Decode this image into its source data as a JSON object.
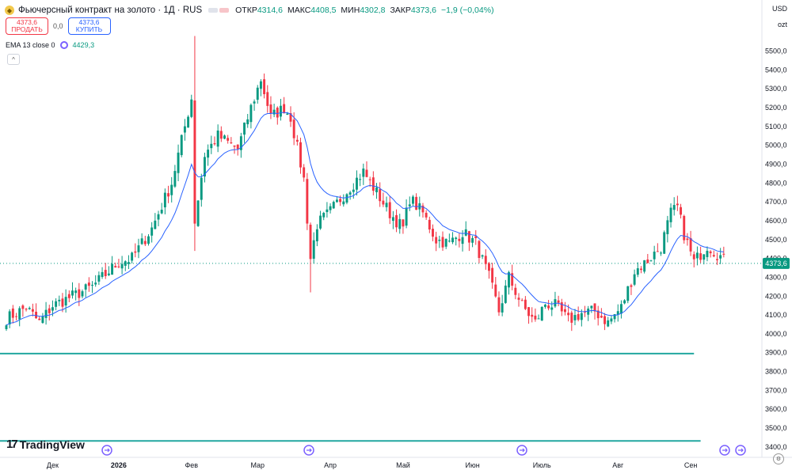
{
  "header": {
    "title": "Фьючерсный контракт на золото · 1Д · RUS",
    "open_label": "ОТКР",
    "open": "4314,6",
    "high_label": "МАКС",
    "high": "4408,5",
    "low_label": "МИН",
    "low": "4302,8",
    "close_label": "ЗАКР",
    "close": "4373,6",
    "change": "−1,9 (−0,04%)"
  },
  "trade": {
    "sell_price": "4373,6",
    "sell_label": "ПРОДАТЬ",
    "spread": "0,0",
    "buy_price": "4373,6",
    "buy_label": "КУПИТЬ"
  },
  "indicator": {
    "label": "EMA 13 close 0",
    "value": "4429,3"
  },
  "axis": {
    "currency": "USD",
    "unit": "ozt"
  },
  "brand": "TradingView",
  "colors": {
    "up": "#089981",
    "down": "#f23645",
    "ema": "#2962ff",
    "hline": "#22a7a0",
    "price_tag": "#089981"
  },
  "chart_data": {
    "type": "candlestick",
    "last_price_label": "4373,6",
    "last_price": 4373.6,
    "ylim": [
      3370,
      5620
    ],
    "y_ticks": [
      3400,
      3500,
      3600,
      3700,
      3800,
      3900,
      4000,
      4100,
      4200,
      4300,
      4400,
      4500,
      4600,
      4700,
      4800,
      4900,
      5000,
      5100,
      5200,
      5300,
      5400,
      5500
    ],
    "y_tick_labels": [
      "3400,0",
      "3500,0",
      "3600,0",
      "3700,0",
      "3800,0",
      "3900,0",
      "4000,0",
      "4100,0",
      "4200,0",
      "4300,0",
      "4400,0",
      "4500,0",
      "4600,0",
      "4700,0",
      "4800,0",
      "4900,0",
      "5000,0",
      "5100,0",
      "5200,0",
      "5300,0",
      "5400,0",
      "5500,0"
    ],
    "x_labels": [
      {
        "label": "Дек",
        "bar": 14
      },
      {
        "label": "2026",
        "bar": 34
      },
      {
        "label": "Фев",
        "bar": 56
      },
      {
        "label": "Мар",
        "bar": 76
      },
      {
        "label": "Апр",
        "bar": 98
      },
      {
        "label": "Май",
        "bar": 120
      },
      {
        "label": "Июн",
        "bar": 141
      },
      {
        "label": "Июль",
        "bar": 162
      },
      {
        "label": "Авг",
        "bar": 185
      },
      {
        "label": "Сен",
        "bar": 207
      }
    ],
    "horizontal_lines": [
      {
        "value": 3895,
        "bar_end": 208
      },
      {
        "value": 3432,
        "bar_end": 210
      }
    ],
    "ema_period": 13,
    "control_points": [
      [
        0,
        4080
      ],
      [
        6,
        4140
      ],
      [
        10,
        4060
      ],
      [
        14,
        4150
      ],
      [
        20,
        4200
      ],
      [
        26,
        4250
      ],
      [
        34,
        4380
      ],
      [
        38,
        4400
      ],
      [
        44,
        4560
      ],
      [
        50,
        4800
      ],
      [
        54,
        5100
      ],
      [
        56,
        5250
      ],
      [
        57,
        4600
      ],
      [
        60,
        4950
      ],
      [
        64,
        5050
      ],
      [
        70,
        4980
      ],
      [
        74,
        5200
      ],
      [
        77,
        5350
      ],
      [
        80,
        5150
      ],
      [
        84,
        5200
      ],
      [
        86,
        5150
      ],
      [
        90,
        4820
      ],
      [
        92,
        4400
      ],
      [
        94,
        4580
      ],
      [
        98,
        4650
      ],
      [
        104,
        4780
      ],
      [
        108,
        4860
      ],
      [
        112,
        4750
      ],
      [
        116,
        4640
      ],
      [
        120,
        4560
      ],
      [
        122,
        4720
      ],
      [
        126,
        4640
      ],
      [
        130,
        4500
      ],
      [
        134,
        4480
      ],
      [
        138,
        4540
      ],
      [
        142,
        4480
      ],
      [
        146,
        4300
      ],
      [
        149,
        4120
      ],
      [
        152,
        4300
      ],
      [
        156,
        4150
      ],
      [
        160,
        4060
      ],
      [
        163,
        4160
      ],
      [
        166,
        4150
      ],
      [
        170,
        4070
      ],
      [
        174,
        4110
      ],
      [
        178,
        4120
      ],
      [
        182,
        4060
      ],
      [
        186,
        4140
      ],
      [
        190,
        4330
      ],
      [
        194,
        4390
      ],
      [
        198,
        4460
      ],
      [
        201,
        4640
      ],
      [
        203,
        4670
      ],
      [
        205,
        4530
      ],
      [
        208,
        4380
      ],
      [
        212,
        4470
      ],
      [
        216,
        4410
      ],
      [
        218,
        4373.6
      ]
    ],
    "last_bar": {
      "open": 4314.6,
      "high": 4408.5,
      "low": 4302.8,
      "close": 4373.6
    }
  }
}
